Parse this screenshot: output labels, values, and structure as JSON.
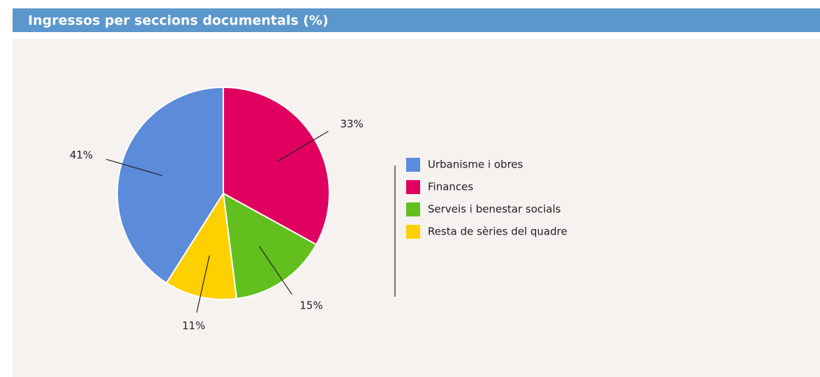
{
  "chart_data": {
    "type": "pie",
    "title": "Ingressos per seccions documentals (%)",
    "categories": [
      "Urbanisme i obres",
      "Finances",
      "Serveis i benestar socials",
      "Resta de sèries del quadre"
    ],
    "values": [
      41,
      33,
      15,
      11
    ],
    "value_labels": [
      "41%",
      "33%",
      "15%",
      "11%"
    ],
    "colors": [
      "#5b8bd9",
      "#e0005f",
      "#62bf1e",
      "#ffd000"
    ],
    "legend": "right"
  }
}
